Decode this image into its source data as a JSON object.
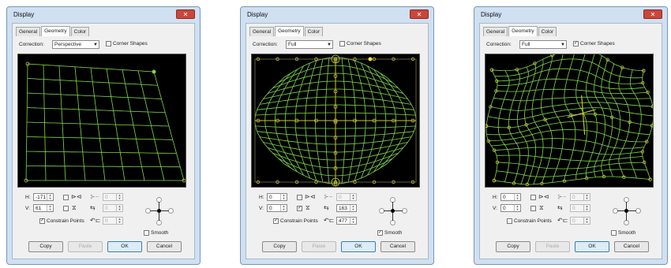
{
  "dialogs": [
    {
      "title": "Display",
      "close_glyph": "✕",
      "tabs": [
        "General",
        "Geometry",
        "Color"
      ],
      "active_tab": "Geometry",
      "correction_label": "Correction:",
      "correction_value": "Perspective",
      "corner_shapes_label": "Corner Shapes",
      "corner_shapes_checked": false,
      "h_label": "H:",
      "h_value": "-171",
      "v_label": "V:",
      "v_value": "61",
      "constrain_label": "Constrain Points",
      "constrain_checked": true,
      "smooth_label": "Smooth",
      "smooth_checked": false,
      "spin3_value": "0",
      "spin4_value": "0",
      "spin5_value": "0",
      "copy_label": "Copy",
      "paste_label": "Paste",
      "ok_label": "OK",
      "cancel_label": "Cancel"
    },
    {
      "title": "Display",
      "close_glyph": "✕",
      "tabs": [
        "General",
        "Geometry",
        "Color"
      ],
      "active_tab": "Geometry",
      "correction_label": "Correction:",
      "correction_value": "Full",
      "corner_shapes_label": "Corner Shapes",
      "corner_shapes_checked": false,
      "h_label": "H:",
      "h_value": "0",
      "v_label": "V:",
      "v_value": "0",
      "constrain_label": "Constrain Points",
      "constrain_checked": true,
      "smooth_label": "Smooth",
      "smooth_checked": true,
      "spin3_value": "0",
      "spin4_value": "163",
      "spin5_value": "477",
      "copy_label": "Copy",
      "paste_label": "Paste",
      "ok_label": "OK",
      "cancel_label": "Cancel"
    },
    {
      "title": "Display",
      "close_glyph": "✕",
      "tabs": [
        "General",
        "Geometry",
        "Color"
      ],
      "active_tab": "Geometry",
      "correction_label": "Correction:",
      "correction_value": "Full",
      "corner_shapes_label": "Corner Shapes",
      "corner_shapes_checked": true,
      "h_label": "H:",
      "h_value": "0",
      "v_label": "V:",
      "v_value": "0",
      "constrain_label": "Constrain Points",
      "constrain_checked": false,
      "smooth_label": "Smooth",
      "smooth_checked": false,
      "spin3_value": "0",
      "spin4_value": "0",
      "spin5_value": "0",
      "copy_label": "Copy",
      "paste_label": "Paste",
      "ok_label": "OK",
      "cancel_label": "Cancel"
    }
  ],
  "colors": {
    "grid": "#7fd84a",
    "handle": "#c9c23a",
    "frame": "#cfe0f1"
  }
}
